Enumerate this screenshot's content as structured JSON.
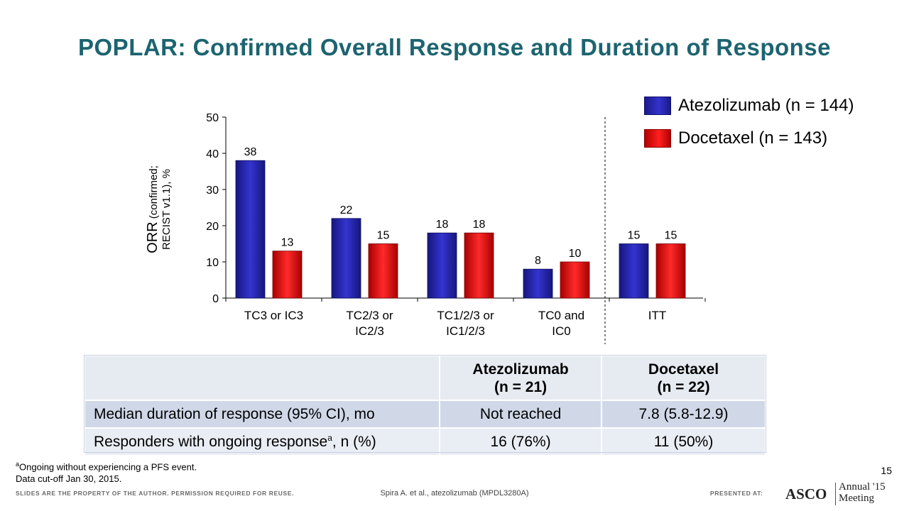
{
  "title": "POPLAR: Confirmed Overall Response and Duration of Response",
  "legend": [
    {
      "label": "Atezolizumab (n = 144)",
      "color": "#2a2ab8"
    },
    {
      "label": "Docetaxel (n = 143)",
      "color": "#e01818"
    }
  ],
  "chart_data": {
    "type": "bar",
    "ylabel_main": "ORR",
    "ylabel_sub1": " (confirmed;",
    "ylabel_sub2": "RECIST v1.1), %",
    "ylim": [
      0,
      50
    ],
    "yticks": [
      0,
      10,
      20,
      30,
      40,
      50
    ],
    "categories": [
      [
        "TC3 or IC3"
      ],
      [
        "TC2/3 or",
        "IC2/3"
      ],
      [
        "TC1/2/3 or",
        "IC1/2/3"
      ],
      [
        "TC0 and",
        "IC0"
      ],
      [
        "ITT"
      ]
    ],
    "series": [
      {
        "name": "Atezolizumab (n = 144)",
        "values": [
          38,
          22,
          18,
          8,
          15
        ],
        "color": "#2a2ab8"
      },
      {
        "name": "Docetaxel (n = 143)",
        "values": [
          13,
          15,
          18,
          10,
          15
        ],
        "color": "#e01818"
      }
    ],
    "divider_before_category": 4,
    "grid": false
  },
  "table": {
    "headers": [
      "",
      "Atezolizumab\n(n = 21)",
      "Docetaxel\n(n = 22)"
    ],
    "rows": [
      {
        "label": "Median duration of response (95% CI), mo",
        "atezolizumab": "Not reached",
        "docetaxel": "7.8 (5.8-12.9)"
      },
      {
        "label_pre": "Responders with ongoing response",
        "label_sup": "a",
        "label_post": ", n (%)",
        "atezolizumab": "16 (76%)",
        "docetaxel": "11 (50%)"
      }
    ]
  },
  "footnote": {
    "sup": "a",
    "line1": "Ongoing without experiencing a PFS event.",
    "line2": "Data cut-off Jan 30, 2015."
  },
  "page_number": "15",
  "disclaimer": "SLIDES ARE THE PROPERTY OF THE AUTHOR. PERMISSION REQUIRED FOR REUSE.",
  "citation": "Spira A. et al., atezolizumab (MPDL3280A)",
  "presented_at": "PRESENTED AT:",
  "logo": {
    "asco": "ASCO",
    "annual": "Annual '15",
    "meeting": "Meeting"
  }
}
